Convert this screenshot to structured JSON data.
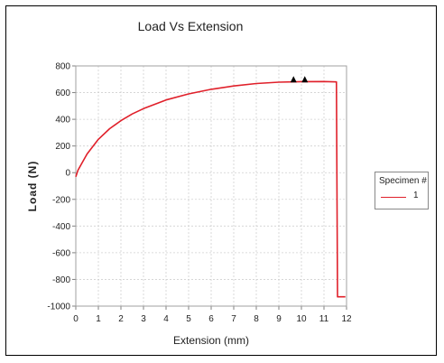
{
  "chart_data": {
    "type": "line",
    "title": "Load Vs Extension",
    "xlabel": "Extension (mm)",
    "ylabel": "Load (N)",
    "xlim": [
      0,
      12
    ],
    "ylim": [
      -1000,
      800
    ],
    "x_ticks": [
      0,
      1,
      2,
      3,
      4,
      5,
      6,
      7,
      8,
      9,
      10,
      11,
      12
    ],
    "y_ticks": [
      800,
      600,
      400,
      200,
      0,
      -200,
      -400,
      -600,
      -800,
      -1000
    ],
    "grid": true,
    "legend_placement": "right",
    "legend": {
      "title": "Specimen #",
      "entries": [
        "1"
      ]
    },
    "series": [
      {
        "name": "1",
        "color": "#e0202a",
        "points": [
          [
            0,
            -30
          ],
          [
            0.1,
            20
          ],
          [
            0.3,
            80
          ],
          [
            0.5,
            140
          ],
          [
            1,
            250
          ],
          [
            1.5,
            330
          ],
          [
            2,
            390
          ],
          [
            2.5,
            440
          ],
          [
            3,
            480
          ],
          [
            4,
            545
          ],
          [
            5,
            590
          ],
          [
            6,
            625
          ],
          [
            7,
            650
          ],
          [
            8,
            668
          ],
          [
            9,
            678
          ],
          [
            10,
            682
          ],
          [
            11,
            683
          ],
          [
            11.55,
            680
          ],
          [
            11.6,
            -930
          ],
          [
            11.95,
            -930
          ]
        ]
      }
    ],
    "markers": [
      {
        "x": 9.65,
        "y": 683,
        "shape": "triangle"
      },
      {
        "x": 10.15,
        "y": 683,
        "shape": "triangle"
      }
    ]
  }
}
